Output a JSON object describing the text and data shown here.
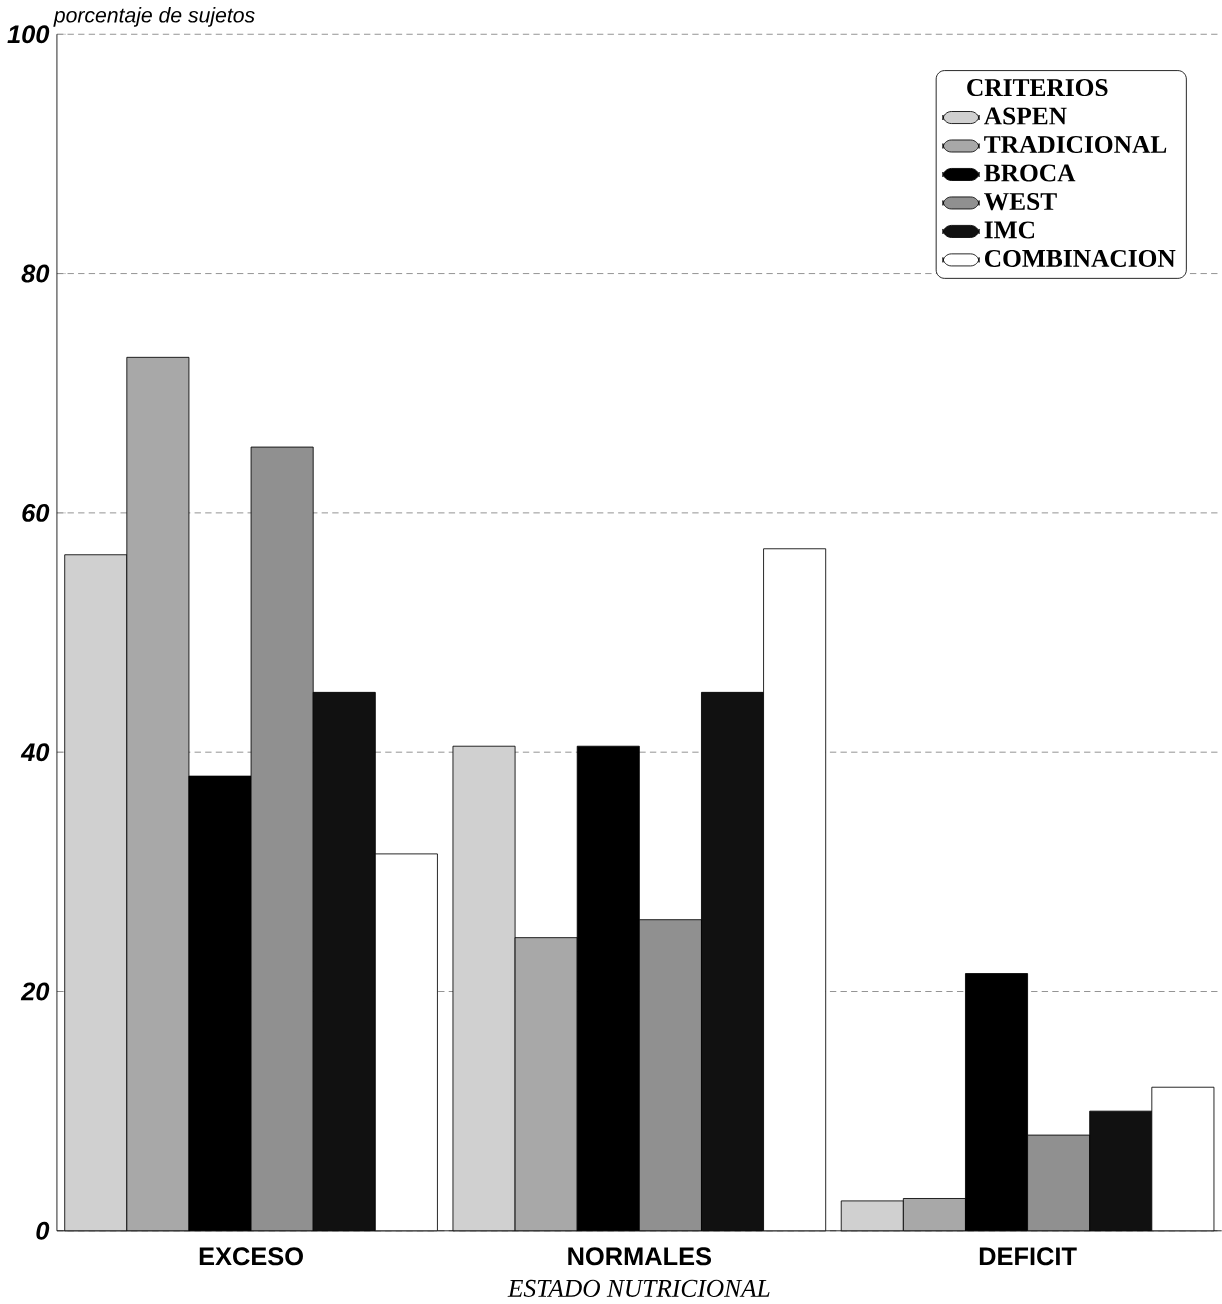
{
  "chart_data": {
    "type": "bar",
    "ylabel": "porcentaje de sujetos",
    "xlabel": "ESTADO NUTRICIONAL",
    "legend_title": "CRITERIOS",
    "categories": [
      "EXCESO",
      "NORMALES",
      "DEFICIT"
    ],
    "ylim": [
      0,
      100
    ],
    "yticks": [
      0,
      20,
      40,
      60,
      80,
      100
    ],
    "grid": "y",
    "legend": "top right",
    "series": [
      {
        "name": "ASPEN",
        "color": "#d0d0d0",
        "values": [
          56.5,
          40.5,
          2.5
        ]
      },
      {
        "name": "TRADICIONAL",
        "color": "#a8a8a8",
        "values": [
          73,
          24.5,
          2.7
        ]
      },
      {
        "name": "BROCA",
        "color": "#000000",
        "values": [
          38,
          40.5,
          21.5
        ]
      },
      {
        "name": "WEST",
        "color": "#909090",
        "values": [
          65.5,
          26,
          8
        ]
      },
      {
        "name": "IMC",
        "color": "#111111",
        "values": [
          45,
          45,
          10
        ]
      },
      {
        "name": "COMBINACION",
        "color": "#ffffff",
        "values": [
          31.5,
          57,
          12
        ]
      }
    ]
  }
}
